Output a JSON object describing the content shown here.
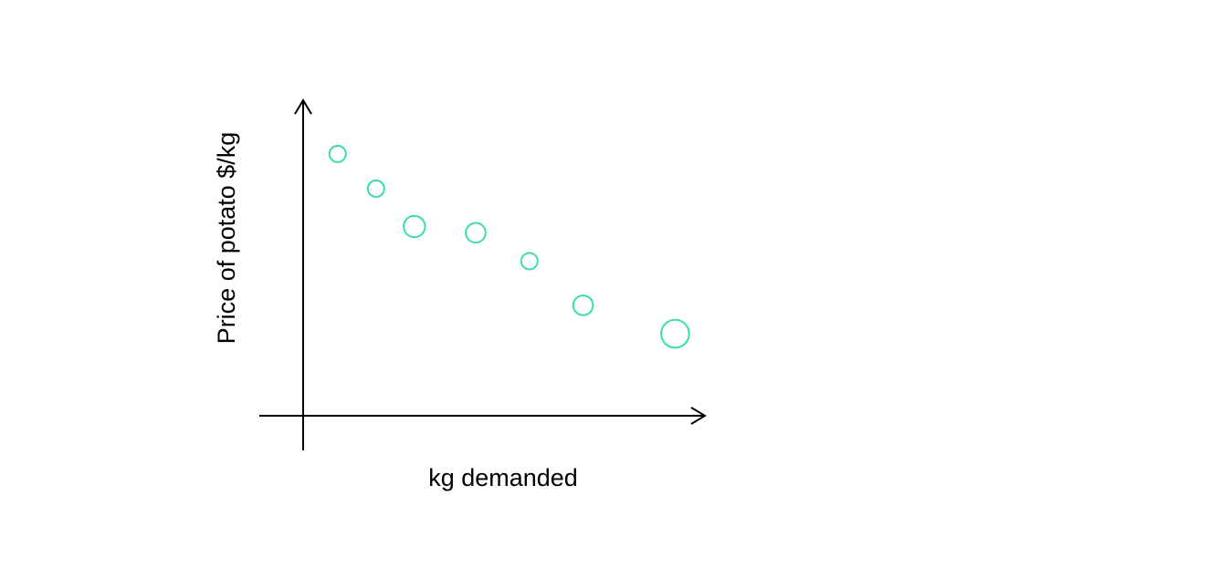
{
  "chart_data": {
    "type": "scatter",
    "title": "",
    "xlabel": "kg demanded",
    "ylabel": "Price of potato $/kg",
    "xlim": [
      0,
      10
    ],
    "ylim": [
      0,
      10
    ],
    "grid": false,
    "legend": "none",
    "tick_labels": false,
    "point_color": "#3ddbb2",
    "series": [
      {
        "points": [
          {
            "x": 0.9,
            "y": 8.3,
            "size": 1
          },
          {
            "x": 1.9,
            "y": 7.2,
            "size": 1
          },
          {
            "x": 2.9,
            "y": 6.0,
            "size": 1.3
          },
          {
            "x": 4.5,
            "y": 5.8,
            "size": 1.2
          },
          {
            "x": 5.9,
            "y": 4.9,
            "size": 1
          },
          {
            "x": 7.3,
            "y": 3.5,
            "size": 1.2
          },
          {
            "x": 9.7,
            "y": 2.6,
            "size": 1.7
          }
        ]
      }
    ]
  }
}
